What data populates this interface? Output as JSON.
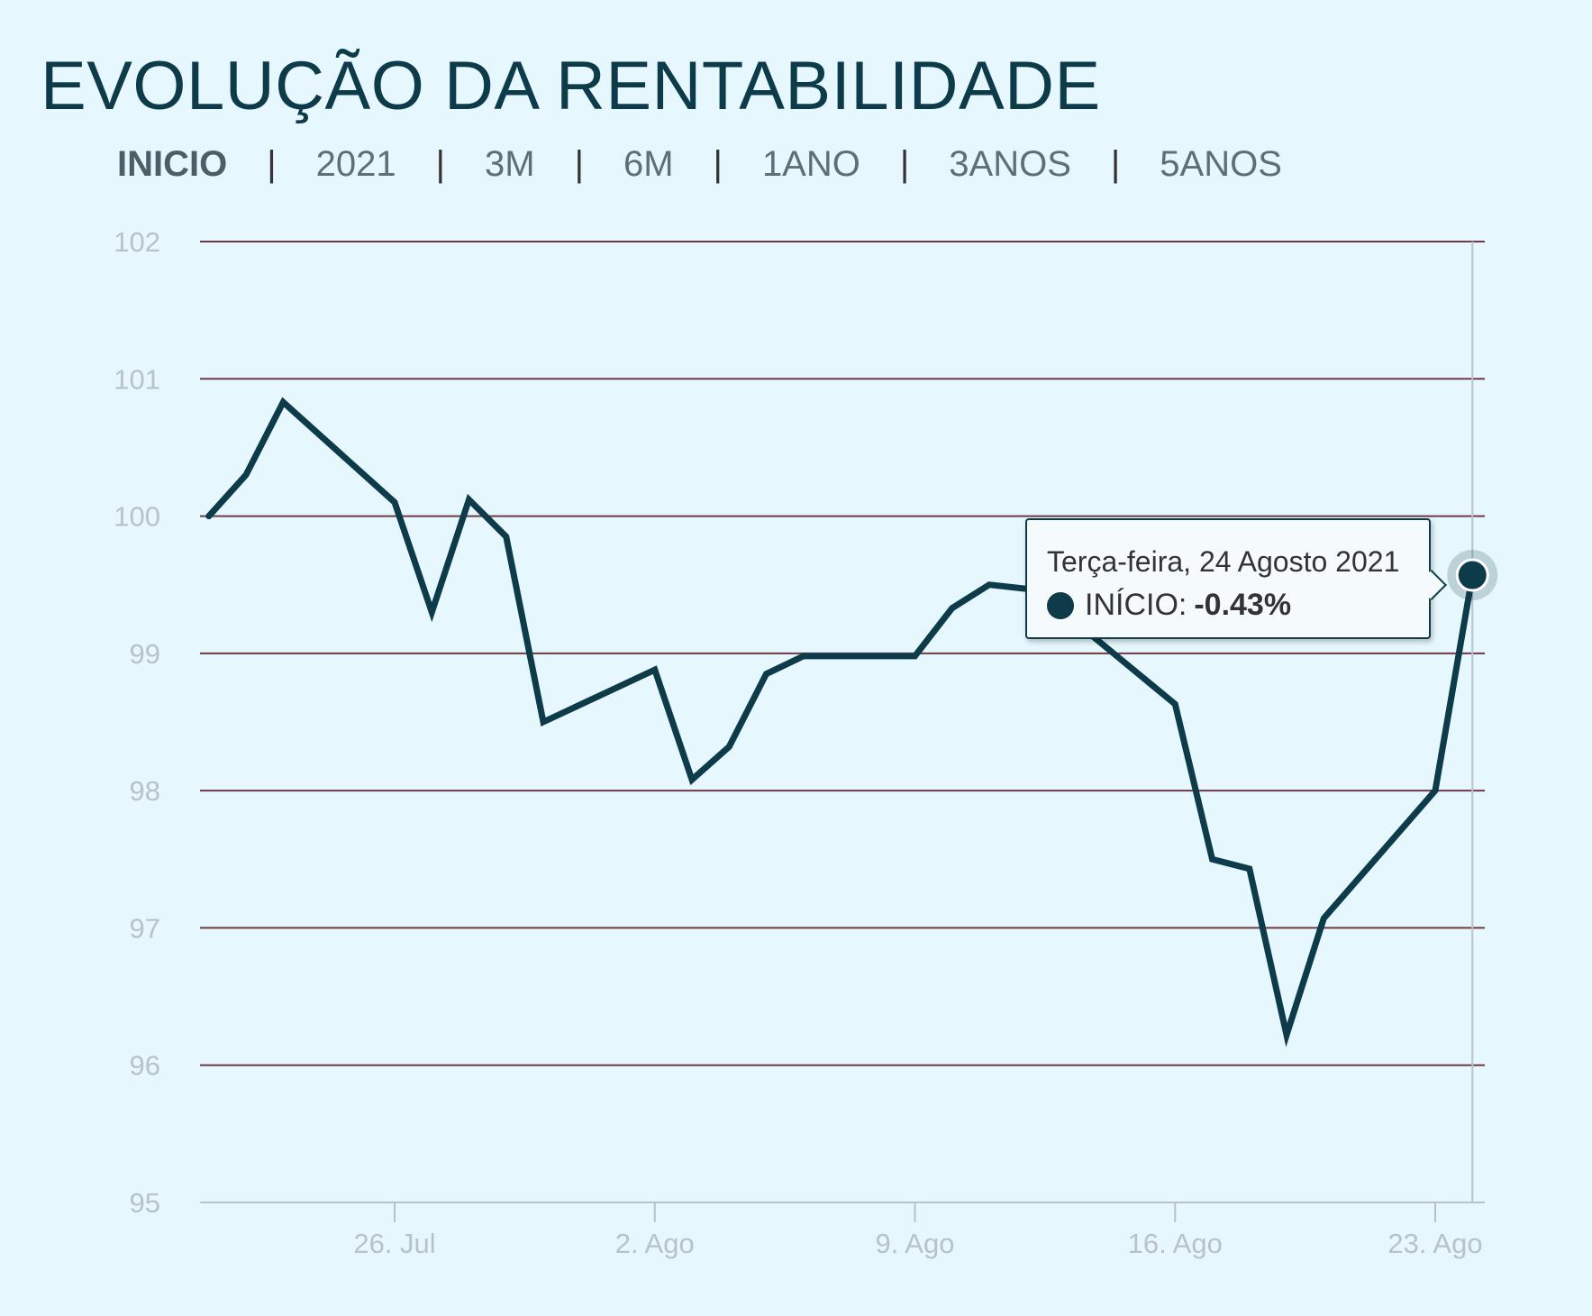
{
  "title": "EVOLUÇÃO DA RENTABILIDADE",
  "tabs": [
    {
      "label": "INICIO",
      "active": true
    },
    {
      "label": "2021",
      "active": false
    },
    {
      "label": "3M",
      "active": false
    },
    {
      "label": "6M",
      "active": false
    },
    {
      "label": "1ANO",
      "active": false
    },
    {
      "label": "3ANOS",
      "active": false
    },
    {
      "label": "5ANOS",
      "active": false
    }
  ],
  "tab_separator": "|",
  "colors": {
    "line": "#0d3b4a",
    "grid": "#6e3b45",
    "tick_text": "#b8c2c7",
    "background": "#e6f8fd"
  },
  "tooltip": {
    "date": "Terça-feira, 24 Agosto 2021",
    "series": "INÍCIO:",
    "value": "-0.43%"
  },
  "chart_data": {
    "type": "line",
    "title": "EVOLUÇÃO DA RENTABILIDADE",
    "xlabel": "",
    "ylabel": "",
    "ylim": [
      95,
      102
    ],
    "yticks": [
      95,
      96,
      97,
      98,
      99,
      100,
      101,
      102
    ],
    "xlim": [
      "2021-07-20",
      "2021-08-24"
    ],
    "xticks": [
      {
        "date": "2021-07-26",
        "label": "26. Jul"
      },
      {
        "date": "2021-08-02",
        "label": "2. Ago"
      },
      {
        "date": "2021-08-09",
        "label": "9. Ago"
      },
      {
        "date": "2021-08-16",
        "label": "16. Ago"
      },
      {
        "date": "2021-08-23",
        "label": "23. Ago"
      }
    ],
    "grid": true,
    "legend": "none",
    "series": [
      {
        "name": "INÍCIO",
        "points": [
          [
            "2021-07-21",
            100.0
          ],
          [
            "2021-07-22",
            100.3
          ],
          [
            "2021-07-23",
            100.83
          ],
          [
            "2021-07-26",
            100.1
          ],
          [
            "2021-07-27",
            99.3
          ],
          [
            "2021-07-28",
            100.12
          ],
          [
            "2021-07-29",
            99.85
          ],
          [
            "2021-07-30",
            98.5
          ],
          [
            "2021-08-02",
            98.88
          ],
          [
            "2021-08-03",
            98.08
          ],
          [
            "2021-08-04",
            98.32
          ],
          [
            "2021-08-05",
            98.85
          ],
          [
            "2021-08-06",
            98.98
          ],
          [
            "2021-08-09",
            98.98
          ],
          [
            "2021-08-10",
            99.33
          ],
          [
            "2021-08-11",
            99.5
          ],
          [
            "2021-08-12",
            99.47
          ],
          [
            "2021-08-13",
            99.3
          ],
          [
            "2021-08-16",
            98.63
          ],
          [
            "2021-08-17",
            97.5
          ],
          [
            "2021-08-18",
            97.43
          ],
          [
            "2021-08-19",
            96.22
          ],
          [
            "2021-08-20",
            97.07
          ],
          [
            "2021-08-23",
            98.0
          ],
          [
            "2021-08-24",
            99.57
          ]
        ]
      }
    ],
    "highlight": {
      "date": "2021-08-24",
      "value": 99.57
    }
  }
}
